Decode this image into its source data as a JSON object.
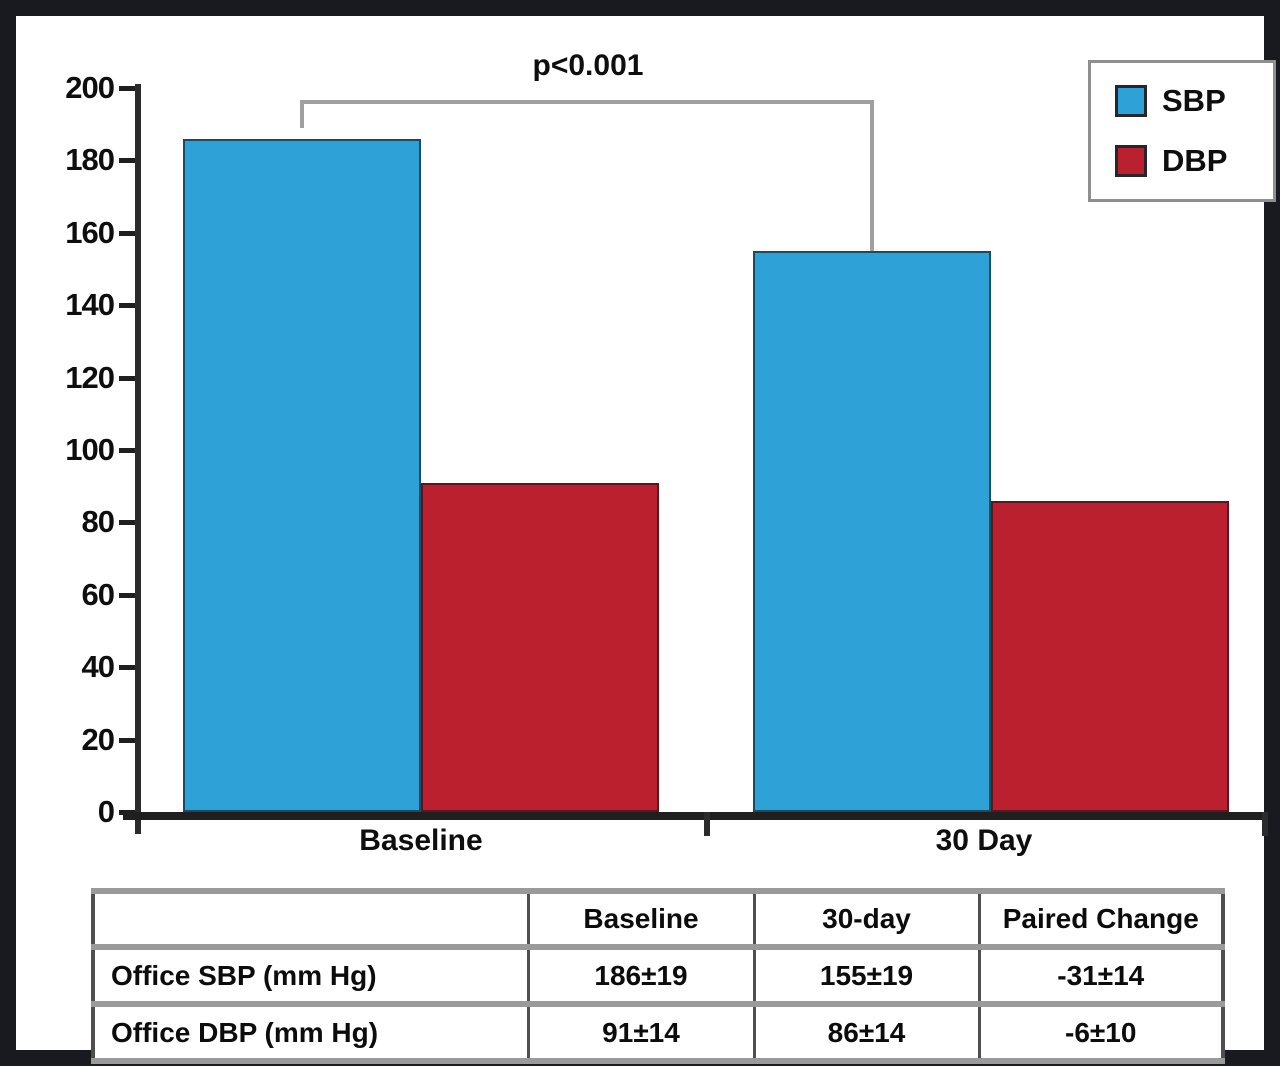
{
  "figure": {
    "frame_color": "#191920",
    "background": "#ffffff"
  },
  "chart_data": {
    "type": "bar",
    "title": "",
    "xlabel": "",
    "ylabel": "",
    "categories": [
      "Baseline",
      "30 Day"
    ],
    "series": [
      {
        "name": "SBP",
        "values": [
          186,
          155
        ],
        "color": "#2ea1d7",
        "edge_color": "#1c4b61"
      },
      {
        "name": "DBP",
        "values": [
          91,
          86
        ],
        "color": "#bb202e",
        "edge_color": "#5a1720"
      }
    ],
    "ylim": [
      0,
      200
    ],
    "yticks": [
      0,
      20,
      40,
      60,
      80,
      100,
      120,
      140,
      160,
      180,
      200
    ],
    "grid": false,
    "legend_position": "top-right",
    "annotation": {
      "text": "p<0.001",
      "between": [
        "Baseline SBP bar",
        "30 Day SBP bar"
      ]
    }
  },
  "table": {
    "headers": [
      "",
      "Baseline",
      "30-day",
      "Paired Change"
    ],
    "rows": [
      {
        "label": "Office SBP (mm Hg)",
        "values": [
          "186±19",
          "155±19",
          "-31±14"
        ]
      },
      {
        "label": "Office DBP (mm Hg)",
        "values": [
          "91±14",
          "86±14",
          "-6±10"
        ]
      }
    ]
  },
  "colors": {
    "axis": "#1f1f1f",
    "bracket": "#a0a0a0",
    "legend_border": "#8f8f8f",
    "table_line_gray": "#9a9a9a",
    "table_line_dark": "#4f4f4f"
  }
}
